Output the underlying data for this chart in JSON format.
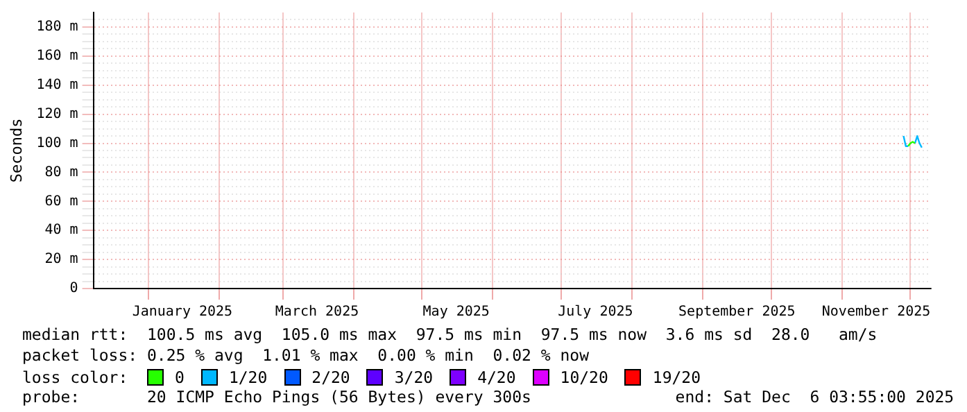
{
  "chart_data": {
    "type": "line",
    "ylabel": "Seconds",
    "legend_title": "loss color:",
    "legend": "bottom",
    "grid": true,
    "marker": "none",
    "line_style": "solid",
    "xlim": [
      "2024-12-08",
      "2025-12-10"
    ],
    "xticks": [
      {
        "value": "2025-01-01",
        "label": null
      },
      {
        "value": "2025-01-16",
        "label": "January 2025"
      },
      {
        "value": "2025-02-01",
        "label": null
      },
      {
        "value": "2025-03-01",
        "label": null
      },
      {
        "value": "2025-03-16",
        "label": "March 2025"
      },
      {
        "value": "2025-04-01",
        "label": null
      },
      {
        "value": "2025-05-01",
        "label": null
      },
      {
        "value": "2025-05-16",
        "label": "May 2025"
      },
      {
        "value": "2025-06-01",
        "label": null
      },
      {
        "value": "2025-07-01",
        "label": null
      },
      {
        "value": "2025-07-16",
        "label": "July 2025"
      },
      {
        "value": "2025-08-01",
        "label": null
      },
      {
        "value": "2025-09-01",
        "label": null
      },
      {
        "value": "2025-09-16",
        "label": "September 2025"
      },
      {
        "value": "2025-10-01",
        "label": null
      },
      {
        "value": "2025-11-01",
        "label": null
      },
      {
        "value": "2025-11-16",
        "label": "November 2025"
      },
      {
        "value": "2025-12-01",
        "label": null
      }
    ],
    "ylim": [
      0,
      190
    ],
    "yticks": [
      0,
      {
        "value": 5,
        "label": null
      },
      {
        "value": 10,
        "label": null
      },
      {
        "value": 15,
        "label": null
      },
      {
        "value": 20,
        "label": "20 m"
      },
      {
        "value": 25,
        "label": null
      },
      {
        "value": 30,
        "label": null
      },
      {
        "value": 35,
        "label": null
      },
      {
        "value": 40,
        "label": "40 m"
      },
      {
        "value": 45,
        "label": null
      },
      {
        "value": 50,
        "label": null
      },
      {
        "value": 55,
        "label": null
      },
      {
        "value": 60,
        "label": "60 m"
      },
      {
        "value": 65,
        "label": null
      },
      {
        "value": 70,
        "label": null
      },
      {
        "value": 75,
        "label": null
      },
      {
        "value": 80,
        "label": "80 m"
      },
      {
        "value": 85,
        "label": null
      },
      {
        "value": 90,
        "label": null
      },
      {
        "value": 95,
        "label": null
      },
      {
        "value": 100,
        "label": "100 m"
      },
      {
        "value": 105,
        "label": null
      },
      {
        "value": 110,
        "label": null
      },
      {
        "value": 115,
        "label": null
      },
      {
        "value": 120,
        "label": "120 m"
      },
      {
        "value": 125,
        "label": null
      },
      {
        "value": 130,
        "label": null
      },
      {
        "value": 135,
        "label": null
      },
      {
        "value": 140,
        "label": "140 m"
      },
      {
        "value": 145,
        "label": null
      },
      {
        "value": 150,
        "label": null
      },
      {
        "value": 155,
        "label": null
      },
      {
        "value": 160,
        "label": "160 m"
      },
      {
        "value": 165,
        "label": null
      },
      {
        "value": 170,
        "label": null
      },
      {
        "value": 175,
        "label": null
      },
      {
        "value": 180,
        "label": "180 m"
      },
      {
        "value": 185,
        "label": null
      }
    ],
    "series": [
      {
        "name": "0",
        "color": "#26ff00",
        "x": [
          "2025-11-30",
          "2025-12-01",
          "2025-12-02",
          "2025-12-03"
        ],
        "values": [
          98,
          100,
          101,
          100
        ]
      },
      {
        "name": "1/20",
        "color": "#00b8ff",
        "x": [
          "2025-11-28",
          "2025-11-29",
          "2025-11-30",
          "2025-12-01",
          "2025-12-03",
          "2025-12-04",
          "2025-12-05",
          "2025-12-06"
        ],
        "values": [
          105,
          98,
          98,
          null,
          100,
          105,
          100,
          97
        ]
      },
      {
        "name": "2/20",
        "color": "#0059ff"
      },
      {
        "name": "3/20",
        "color": "#5e00ff"
      },
      {
        "name": "4/20",
        "color": "#7e00ff"
      },
      {
        "name": "10/20",
        "color": "#dd00ff"
      },
      {
        "name": "19/20",
        "color": "#ff0000"
      }
    ],
    "annotations": [
      "median rtt:  100.5 ms avg  105.0 ms max  97.5 ms min  97.5 ms now  3.6 ms sd  28.0   am/s",
      "packet loss: 0.25 % avg  1.01 % max  0.00 % min  0.02 % now",
      "probe:       20 ICMP Echo Pings (56 Bytes) every 300s               end: Sat Dec  6 03:55:00 2025"
    ]
  }
}
